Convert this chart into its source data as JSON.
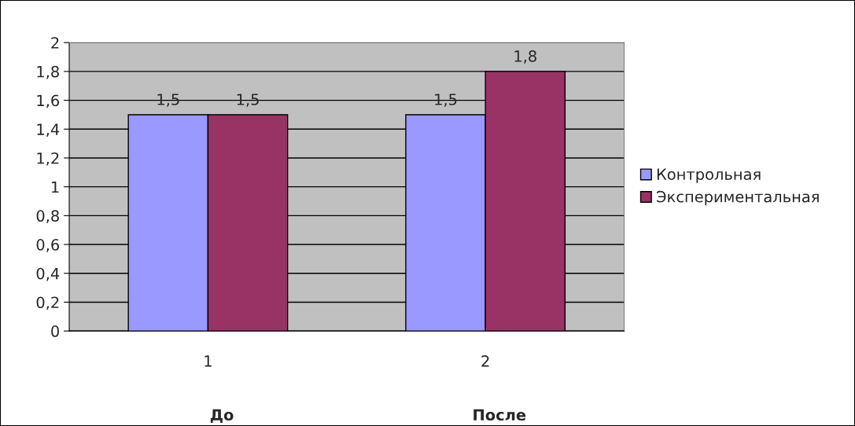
{
  "chart_data": {
    "type": "bar",
    "categories": [
      "1",
      "2"
    ],
    "series": [
      {
        "name": "Контрольная",
        "color": "#9999ff",
        "values": [
          1.5,
          1.5
        ],
        "value_labels": [
          "1,5",
          "1,5"
        ]
      },
      {
        "name": "Экспериментальная",
        "color": "#993366",
        "values": [
          1.5,
          1.8
        ],
        "value_labels": [
          "1,5",
          "1,8"
        ]
      }
    ],
    "ylim": [
      0,
      2
    ],
    "yticks": [
      0,
      {
        "value": 0.2,
        "label": "0,2"
      },
      {
        "value": 0.4,
        "label": "0,4"
      },
      {
        "value": 0.6,
        "label": "0,6"
      },
      {
        "value": 0.8,
        "label": "0,8"
      },
      1,
      {
        "value": 1.2,
        "label": "1,2"
      },
      {
        "value": 1.4,
        "label": "1,4"
      },
      {
        "value": 1.6,
        "label": "1,6"
      },
      {
        "value": 1.8,
        "label": "1,8"
      },
      2
    ],
    "grid": "y",
    "legend": "right",
    "annotations": [
      "До",
      "После"
    ]
  }
}
